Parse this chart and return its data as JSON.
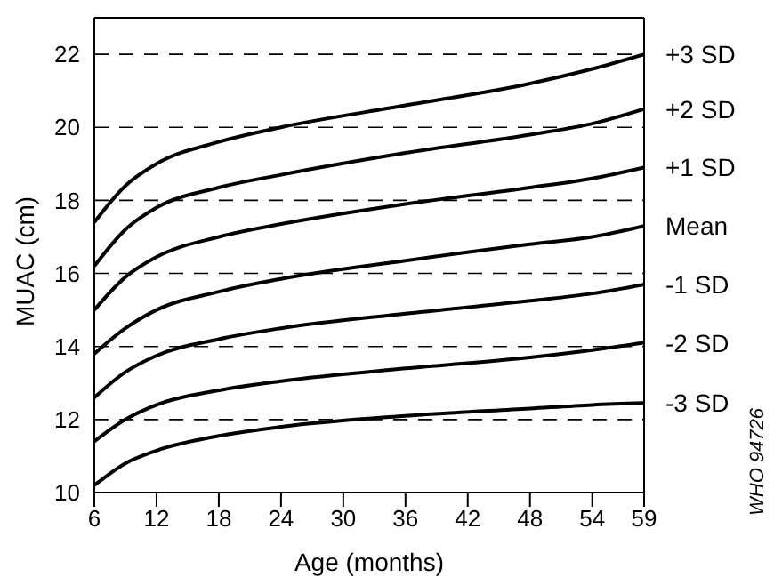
{
  "chart_data": {
    "type": "line",
    "xlabel": "Age (months)",
    "ylabel": "MUAC (cm)",
    "x": [
      6,
      9,
      12,
      18,
      24,
      36,
      48,
      54,
      59
    ],
    "series": [
      {
        "name": "+3 SD",
        "color": "#000000",
        "values": [
          17.4,
          18.4,
          19.0,
          19.6,
          20.0,
          20.6,
          21.2,
          21.6,
          22.0
        ]
      },
      {
        "name": "+2 SD",
        "color": "#000000",
        "values": [
          16.2,
          17.2,
          17.8,
          18.35,
          18.7,
          19.3,
          19.8,
          20.1,
          20.5
        ]
      },
      {
        "name": "+1 SD",
        "color": "#000000",
        "values": [
          15.0,
          15.9,
          16.45,
          17.0,
          17.35,
          17.9,
          18.35,
          18.6,
          18.9
        ]
      },
      {
        "name": "Mean",
        "color": "#000000",
        "values": [
          13.8,
          14.5,
          15.0,
          15.5,
          15.85,
          16.35,
          16.8,
          17.0,
          17.3
        ]
      },
      {
        "name": "-1 SD",
        "color": "#000000",
        "values": [
          12.6,
          13.3,
          13.75,
          14.2,
          14.5,
          14.9,
          15.25,
          15.45,
          15.7
        ]
      },
      {
        "name": "-2 SD",
        "color": "#000000",
        "values": [
          11.4,
          12.0,
          12.4,
          12.8,
          13.05,
          13.4,
          13.7,
          13.9,
          14.1
        ]
      },
      {
        "name": "-3 SD",
        "color": "#000000",
        "values": [
          10.2,
          10.8,
          11.15,
          11.55,
          11.8,
          12.1,
          12.3,
          12.4,
          12.45
        ]
      }
    ],
    "xlim": [
      6,
      59
    ],
    "xticks": [
      6,
      12,
      18,
      24,
      30,
      36,
      42,
      48,
      54,
      59
    ],
    "ylim": [
      10,
      23
    ],
    "yticks": [
      10,
      12,
      14,
      16,
      18,
      20,
      22
    ],
    "grid": "y",
    "marker": "none",
    "line_style": "solid",
    "annotations": [
      "WHO 94726"
    ]
  }
}
